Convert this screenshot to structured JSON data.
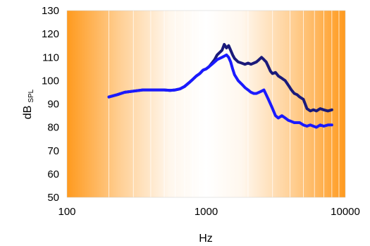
{
  "chart_data": {
    "type": "line",
    "xscale": "log",
    "xlim": [
      100,
      10000
    ],
    "ylim": [
      50,
      130
    ],
    "xticks": [
      100,
      1000,
      10000
    ],
    "yticks": [
      50,
      60,
      70,
      80,
      90,
      100,
      110,
      120,
      130
    ],
    "xtick_labels": [
      "100",
      "1000",
      "10000"
    ],
    "ytick_labels": [
      "50",
      "60",
      "70",
      "80",
      "90",
      "100",
      "110",
      "120",
      "130"
    ],
    "xlabel": "Hz",
    "ylabel": "dB",
    "ylabel_subscript": "SPL",
    "grid": "minor log x gridlines, white",
    "background": "orange at both frequency ends fading to white in the middle",
    "legend": "none",
    "colors": {
      "orange": "#ff9a1e",
      "series_dark": "#1a1a7a",
      "series_blue": "#1a1aff",
      "grid": "#ffffff"
    },
    "series": [
      {
        "color": "#1a1a7a",
        "x": [
          200,
          230,
          260,
          300,
          350,
          400,
          450,
          500,
          550,
          600,
          650,
          700,
          750,
          800,
          850,
          900,
          950,
          1000,
          1050,
          1100,
          1150,
          1200,
          1250,
          1300,
          1350,
          1400,
          1450,
          1500,
          1550,
          1600,
          1700,
          1800,
          1900,
          2000,
          2100,
          2200,
          2300,
          2400,
          2500,
          2600,
          2700,
          2800,
          2900,
          3000,
          3150,
          3300,
          3500,
          3700,
          3900,
          4100,
          4300,
          4500,
          4700,
          5000,
          5300,
          5600,
          5900,
          6200,
          6600,
          7000,
          7500,
          8000
        ],
        "y": [
          93,
          94,
          95,
          95.5,
          96,
          96,
          96,
          96,
          95.8,
          96,
          96.5,
          97.5,
          99,
          100.5,
          102,
          103,
          104.5,
          105,
          106,
          107.5,
          109,
          111,
          112,
          113,
          115.5,
          114,
          115,
          113,
          111,
          109.5,
          108,
          107.5,
          107,
          107.5,
          107,
          107.5,
          108,
          109,
          110,
          109,
          108,
          106,
          104,
          103,
          103.5,
          102,
          101,
          100,
          98,
          96,
          94.5,
          94,
          93,
          92,
          88,
          87,
          87.5,
          87,
          88,
          87.5,
          87,
          87.5
        ]
      },
      {
        "color": "#1a1aff",
        "x": [
          200,
          230,
          260,
          300,
          350,
          400,
          450,
          500,
          550,
          600,
          650,
          700,
          750,
          800,
          850,
          900,
          950,
          1000,
          1050,
          1100,
          1150,
          1200,
          1250,
          1300,
          1350,
          1400,
          1450,
          1500,
          1550,
          1600,
          1700,
          1800,
          1900,
          2000,
          2100,
          2200,
          2300,
          2400,
          2500,
          2600,
          2700,
          2800,
          2900,
          3000,
          3150,
          3300,
          3500,
          3700,
          3900,
          4100,
          4300,
          4500,
          4700,
          5000,
          5300,
          5600,
          5900,
          6200,
          6600,
          7000,
          7500,
          8000
        ],
        "y": [
          93,
          94,
          95,
          95.5,
          96,
          96,
          96,
          96,
          95.8,
          96,
          96.5,
          97.5,
          99,
          100.5,
          102,
          103,
          104.5,
          105,
          106,
          107,
          108,
          109,
          109.5,
          110,
          110.5,
          111,
          110,
          108,
          105,
          102.5,
          100,
          98.5,
          97,
          96,
          95,
          94.5,
          94.5,
          95,
          95.5,
          96,
          94,
          92,
          90,
          88,
          85,
          84,
          85,
          84,
          83,
          82.5,
          82,
          82,
          82,
          81,
          80.5,
          81,
          80.5,
          80,
          81,
          80.5,
          81,
          81
        ]
      }
    ]
  }
}
